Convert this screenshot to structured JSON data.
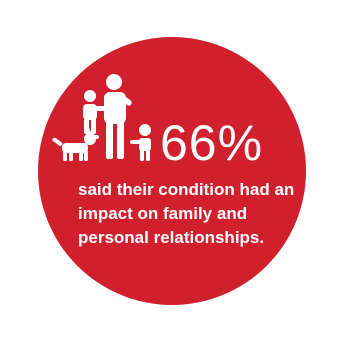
{
  "infographic": {
    "stat_value": "66%",
    "caption": "said their condition had an impact on family and personal relationships.",
    "icon": "family-with-dog-icon",
    "colors": {
      "circle": "#d0202e",
      "text": "#ffffff",
      "background": "#ffffff"
    }
  }
}
